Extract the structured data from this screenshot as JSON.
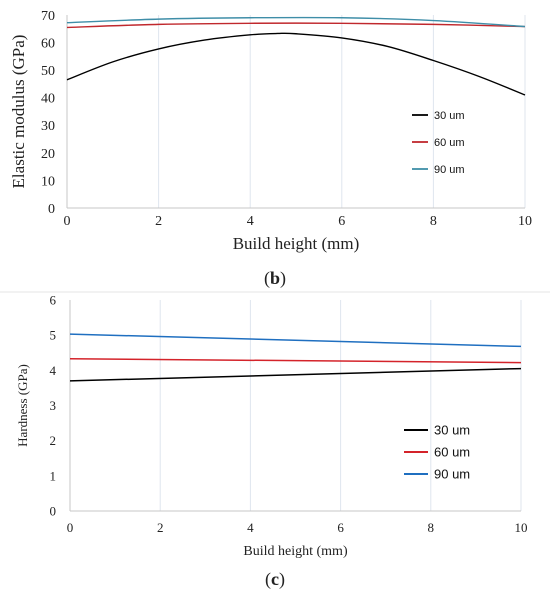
{
  "chart_data": [
    {
      "id": "b",
      "type": "line",
      "panel_label": "(b)",
      "xlabel": "Build height (mm)",
      "ylabel": "Elastic modulus (GPa)",
      "xlim": [
        0,
        10
      ],
      "ylim": [
        0,
        70
      ],
      "xticks": [
        0,
        2,
        4,
        6,
        8,
        10
      ],
      "yticks": [
        0,
        10,
        20,
        30,
        40,
        50,
        60,
        70
      ],
      "grid": "vertical",
      "legend_position": "right-middle",
      "series": [
        {
          "name": "30 um",
          "color": "#000000",
          "x": [
            0,
            1,
            2,
            3,
            4,
            4.6,
            5,
            6,
            7,
            8,
            9,
            10
          ],
          "y": [
            46.5,
            53.0,
            57.7,
            60.9,
            62.8,
            63.3,
            63.2,
            61.7,
            58.6,
            53.5,
            47.7,
            41.0
          ]
        },
        {
          "name": "60 um",
          "color": "#c0282d",
          "x": [
            0,
            2,
            4,
            6,
            8,
            10
          ],
          "y": [
            65.5,
            66.6,
            67.0,
            67.0,
            66.6,
            65.8
          ]
        },
        {
          "name": "90 um",
          "color": "#3f8ea8",
          "x": [
            0,
            2,
            4,
            6,
            8,
            10
          ],
          "y": [
            67.2,
            68.5,
            69.0,
            69.0,
            68.0,
            65.8
          ]
        }
      ]
    },
    {
      "id": "c",
      "type": "line",
      "panel_label": "(c)",
      "xlabel": "Build height (mm)",
      "ylabel": "Hardness (GPa)",
      "xlim": [
        0,
        10
      ],
      "ylim": [
        0,
        6
      ],
      "xticks": [
        0,
        2,
        4,
        6,
        8,
        10
      ],
      "yticks": [
        0,
        1,
        2,
        3,
        4,
        5,
        6
      ],
      "grid": "vertical",
      "legend_position": "right-middle",
      "series": [
        {
          "name": "30 um",
          "color": "#000000",
          "x": [
            0,
            10
          ],
          "y": [
            3.7,
            4.05
          ]
        },
        {
          "name": "60 um",
          "color": "#d4232a",
          "x": [
            0,
            10
          ],
          "y": [
            4.33,
            4.22
          ]
        },
        {
          "name": "90 um",
          "color": "#1f6fc0",
          "x": [
            0,
            10
          ],
          "y": [
            5.03,
            4.68
          ]
        }
      ]
    }
  ]
}
